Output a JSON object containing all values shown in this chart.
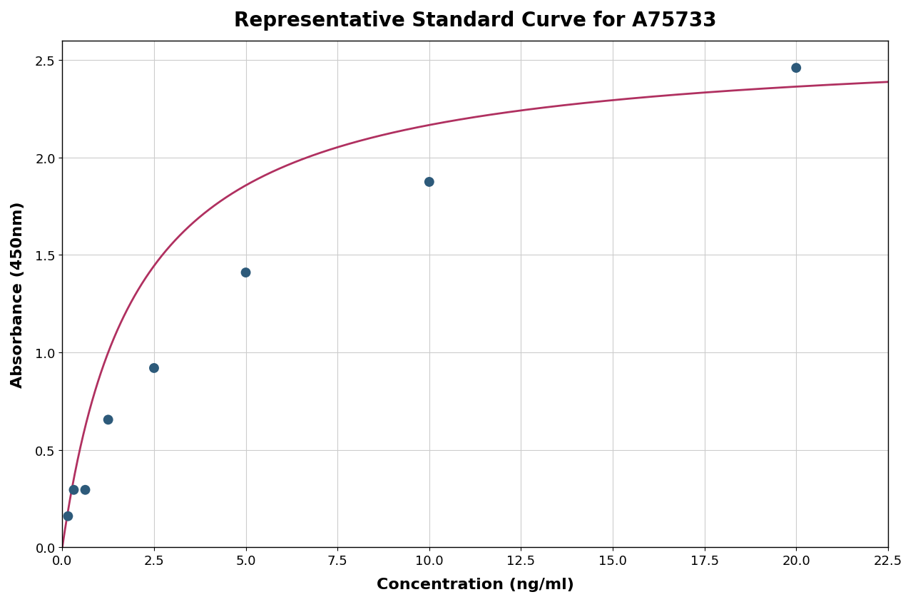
{
  "title": "Representative Standard Curve for A75733",
  "xlabel": "Concentration (ng/ml)",
  "ylabel": "Absorbance (450nm)",
  "scatter_x": [
    0.156,
    0.313,
    0.625,
    1.25,
    2.5,
    5.0,
    10.0,
    20.0
  ],
  "scatter_y": [
    0.16,
    0.295,
    0.295,
    0.655,
    0.92,
    1.41,
    1.875,
    2.46
  ],
  "scatter_color": "#2d5a7a",
  "curve_color": "#b03060",
  "xlim": [
    0.0,
    22.5
  ],
  "ylim": [
    0.0,
    2.6
  ],
  "xticks": [
    0.0,
    2.5,
    5.0,
    7.5,
    10.0,
    12.5,
    15.0,
    17.5,
    20.0,
    22.5
  ],
  "yticks": [
    0.0,
    0.5,
    1.0,
    1.5,
    2.0,
    2.5
  ],
  "grid_color": "#cccccc",
  "background_color": "#ffffff",
  "title_fontsize": 20,
  "label_fontsize": 16,
  "tick_fontsize": 13,
  "scatter_size": 100,
  "curve_linewidth": 2.0
}
